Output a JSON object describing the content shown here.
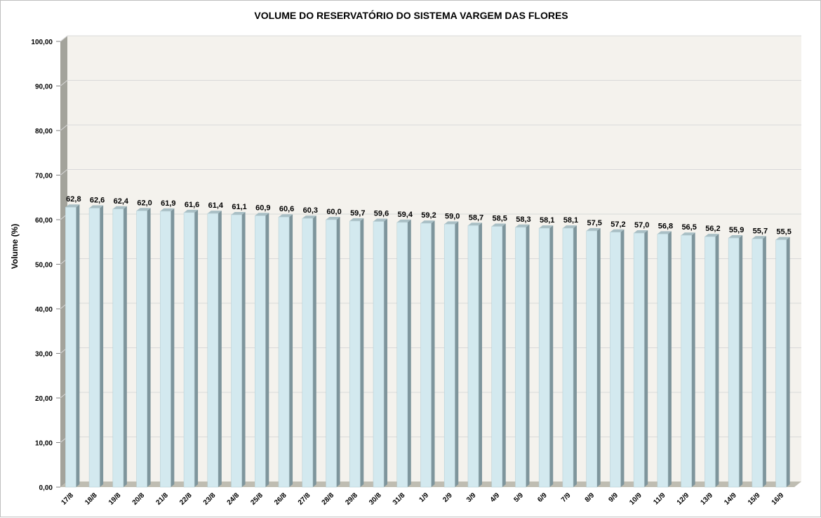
{
  "chart_data": {
    "type": "bar",
    "title": "VOLUME DO RESERVATÓRIO DO SISTEMA VARGEM DAS FLORES",
    "xlabel": "",
    "ylabel": "Volume (%)",
    "ylim": [
      0,
      100
    ],
    "yticks": [
      "0,00",
      "10,00",
      "20,00",
      "30,00",
      "40,00",
      "50,00",
      "60,00",
      "70,00",
      "80,00",
      "90,00",
      "100,00"
    ],
    "grid": true,
    "legend": "none",
    "categories": [
      "17/8",
      "18/8",
      "19/8",
      "20/8",
      "21/8",
      "22/8",
      "23/8",
      "24/8",
      "25/8",
      "26/8",
      "27/8",
      "28/8",
      "29/8",
      "30/8",
      "31/8",
      "1/9",
      "2/9",
      "3/9",
      "4/9",
      "5/9",
      "6/9",
      "7/9",
      "8/9",
      "9/9",
      "10/9",
      "11/9",
      "12/9",
      "13/9",
      "14/9",
      "15/9",
      "16/9"
    ],
    "values": [
      62.8,
      62.6,
      62.4,
      62.0,
      61.9,
      61.6,
      61.4,
      61.1,
      60.9,
      60.6,
      60.3,
      60.0,
      59.7,
      59.6,
      59.4,
      59.2,
      59.0,
      58.7,
      58.5,
      58.3,
      58.1,
      58.1,
      57.5,
      57.2,
      57.0,
      56.8,
      56.5,
      56.2,
      55.9,
      55.7,
      55.5
    ],
    "data_labels": [
      "62,8",
      "62,6",
      "62,4",
      "62,0",
      "61,9",
      "61,6",
      "61,4",
      "61,1",
      "60,9",
      "60,6",
      "60,3",
      "60,0",
      "59,7",
      "59,6",
      "59,4",
      "59,2",
      "59,0",
      "58,7",
      "58,5",
      "58,3",
      "58,1",
      "58,1",
      "57,5",
      "57,2",
      "57,0",
      "56,8",
      "56,5",
      "56,2",
      "55,9",
      "55,7",
      "55,5"
    ],
    "colors": {
      "bar_front": "#d3e9ef",
      "bar_side": "#7e959c",
      "bar_top": "#a9bfc5",
      "plot_back": "#f4f2ed",
      "left_wall": "#a3a39b",
      "floor": "#bfbdb2",
      "gridline": "#d9d9d9"
    }
  }
}
